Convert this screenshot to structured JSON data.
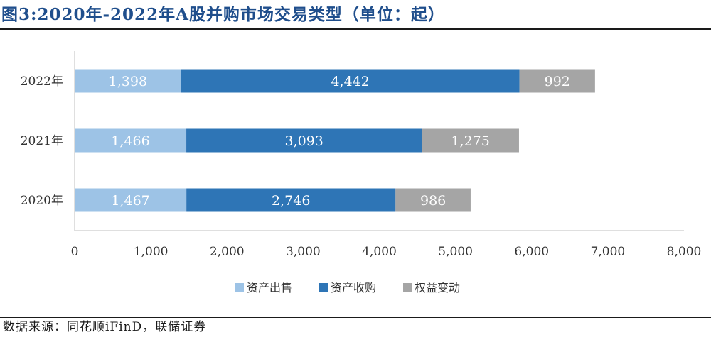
{
  "title": "图3:2020年-2022年A股并购市场交易类型（单位：起）",
  "source": "数据来源：同花顺iFinD，联储证券",
  "chart_data": {
    "type": "bar",
    "orientation": "horizontal",
    "stacked": true,
    "categories": [
      "2022年",
      "2021年",
      "2020年"
    ],
    "series": [
      {
        "name": "资产出售",
        "color": "#9DC3E6",
        "values": [
          1398,
          1466,
          1467
        ],
        "labels": [
          "1,398",
          "1,466",
          "1,467"
        ]
      },
      {
        "name": "资产收购",
        "color": "#2E75B6",
        "values": [
          4442,
          3093,
          2746
        ],
        "labels": [
          "4,442",
          "3,093",
          "2,746"
        ]
      },
      {
        "name": "权益变动",
        "color": "#A5A5A5",
        "values": [
          992,
          1275,
          986
        ],
        "labels": [
          "992",
          "1,275",
          "986"
        ]
      }
    ],
    "xlim": [
      0,
      8000
    ],
    "xticks": [
      0,
      1000,
      2000,
      3000,
      4000,
      5000,
      6000,
      7000,
      8000
    ],
    "xtick_labels": [
      "0",
      "1,000",
      "2,000",
      "3,000",
      "4,000",
      "5,000",
      "6,000",
      "7,000",
      "8,000"
    ],
    "grid": false,
    "legend": "bottom"
  }
}
